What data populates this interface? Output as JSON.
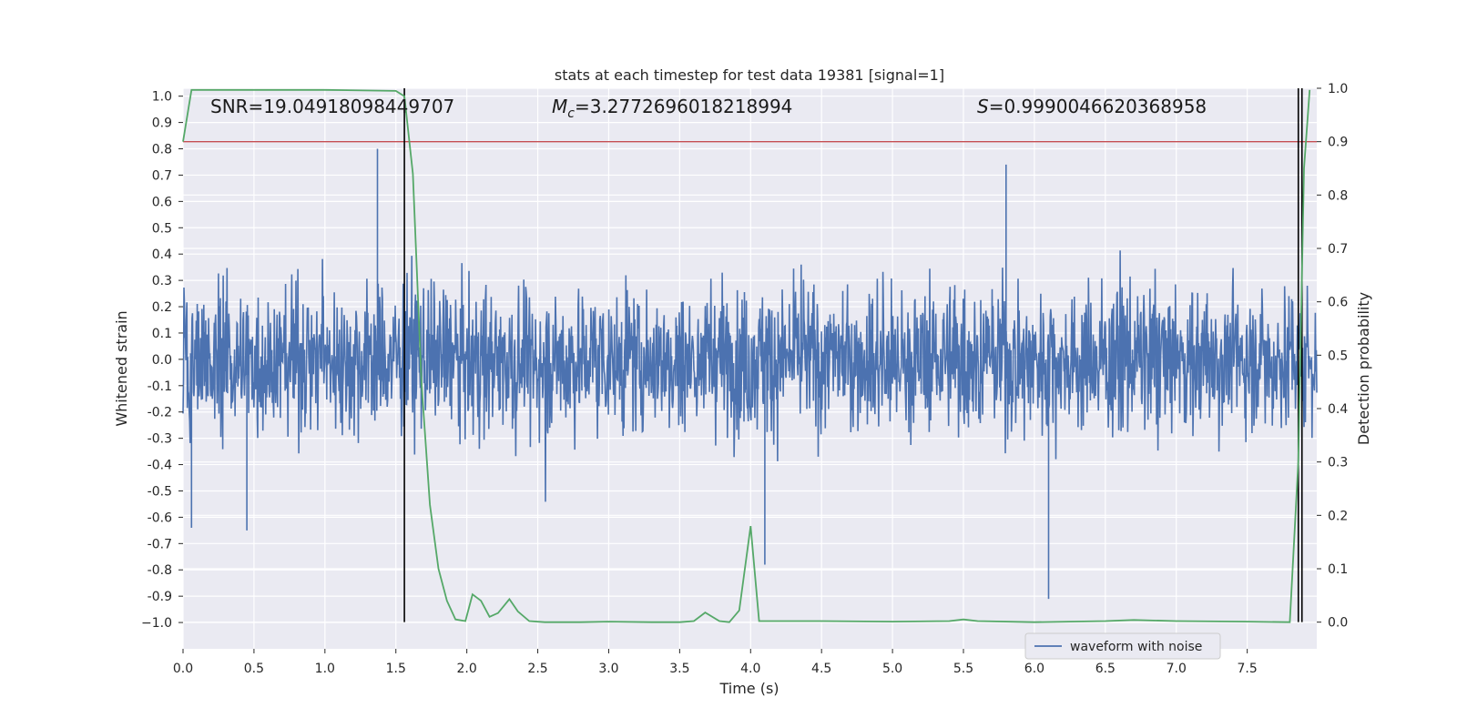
{
  "chart_data": {
    "type": "line",
    "title": "stats at each timestep for test data 19381 [signal=1]",
    "xlabel": "Time (s)",
    "ylabel_left": "Whitened strain",
    "ylabel_right": "Detection probability",
    "xlim": [
      0.0,
      7.99
    ],
    "ylim_left": [
      -1.1,
      1.03
    ],
    "ylim_right": [
      -0.05,
      1.0
    ],
    "x_ticks": [
      "0.0",
      "0.5",
      "1.0",
      "1.5",
      "2.0",
      "2.5",
      "3.0",
      "3.5",
      "4.0",
      "4.5",
      "5.0",
      "5.5",
      "6.0",
      "6.5",
      "7.0",
      "7.5"
    ],
    "x_tick_values": [
      0.0,
      0.5,
      1.0,
      1.5,
      2.0,
      2.5,
      3.0,
      3.5,
      4.0,
      4.5,
      5.0,
      5.5,
      6.0,
      6.5,
      7.0,
      7.5
    ],
    "y_left_ticks": [
      "1.0",
      "0.9",
      "0.8",
      "0.7",
      "0.6",
      "0.5",
      "0.4",
      "0.3",
      "0.2",
      "0.1",
      "0.0",
      "-0.1",
      "-0.2",
      "-0.3",
      "-0.4",
      "-0.5",
      "-0.6",
      "-0.7",
      "-0.8",
      "-0.9",
      "−1.0"
    ],
    "y_left_tick_values": [
      1.0,
      0.9,
      0.8,
      0.7,
      0.6,
      0.5,
      0.4,
      0.3,
      0.2,
      0.1,
      0.0,
      -0.1,
      -0.2,
      -0.3,
      -0.4,
      -0.5,
      -0.6,
      -0.7,
      -0.8,
      -0.9,
      -1.0
    ],
    "y_right_ticks": [
      "1.0",
      "0.9",
      "0.8",
      "0.7",
      "0.6",
      "0.5",
      "0.4",
      "0.3",
      "0.2",
      "0.1",
      "0.0"
    ],
    "y_right_tick_values": [
      1.0,
      0.9,
      0.8,
      0.7,
      0.6,
      0.5,
      0.4,
      0.3,
      0.2,
      0.1,
      0.0
    ],
    "annotations": {
      "snr": "SNR=19.04918098449707",
      "mc_symbol": "M",
      "mc_sub": "c",
      "mc_value": "=3.2772696018218994",
      "s_symbol": "S",
      "s_value": "=0.9990046620368958"
    },
    "threshold": {
      "axis": "right",
      "value": 0.9,
      "color": "#c44e52"
    },
    "vlines": [
      1.56,
      7.86
    ],
    "legend": {
      "label": "waveform with noise",
      "position": "lower-right"
    },
    "series": [
      {
        "name": "waveform with noise",
        "axis": "left",
        "color": "#4c72b0",
        "kind": "noise",
        "approx_envelope": [
          -0.45,
          0.45
        ],
        "notable_peaks": [
          {
            "x": 1.37,
            "y": 0.8
          },
          {
            "x": 5.8,
            "y": 0.74
          },
          {
            "x": 6.1,
            "y": -0.91
          },
          {
            "x": 4.1,
            "y": -0.78
          },
          {
            "x": 0.06,
            "y": -0.64
          },
          {
            "x": 0.45,
            "y": -0.65
          }
        ]
      },
      {
        "name": "detection probability",
        "axis": "right",
        "color": "#55a868",
        "x": [
          0.0,
          0.06,
          0.5,
          1.0,
          1.5,
          1.56,
          1.62,
          1.68,
          1.74,
          1.8,
          1.86,
          1.92,
          1.99,
          2.04,
          2.1,
          2.16,
          2.22,
          2.3,
          2.36,
          2.44,
          2.55,
          2.8,
          3.0,
          3.3,
          3.5,
          3.6,
          3.68,
          3.78,
          3.85,
          3.92,
          4.0,
          4.06,
          4.2,
          4.5,
          5.0,
          5.4,
          5.5,
          5.6,
          6.0,
          6.5,
          6.7,
          7.0,
          7.5,
          7.8,
          7.86,
          7.9,
          7.94
        ],
        "y": [
          0.9,
          0.997,
          0.997,
          0.997,
          0.995,
          0.985,
          0.84,
          0.45,
          0.22,
          0.1,
          0.04,
          0.005,
          0.002,
          0.052,
          0.04,
          0.01,
          0.017,
          0.043,
          0.02,
          0.002,
          0.0,
          0.0,
          0.001,
          0.0,
          0.0,
          0.002,
          0.018,
          0.002,
          0.0,
          0.022,
          0.18,
          0.002,
          0.002,
          0.002,
          0.001,
          0.002,
          0.005,
          0.002,
          0.0,
          0.002,
          0.004,
          0.002,
          0.001,
          0.0,
          0.3,
          0.85,
          0.997
        ]
      }
    ]
  }
}
